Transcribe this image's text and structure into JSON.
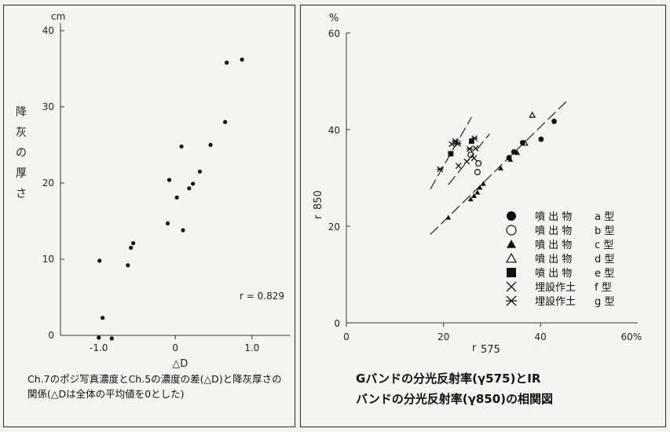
{
  "chart_data": [
    {
      "type": "scatter",
      "ylabel": "降灰の厚さ",
      "yunit": "cm",
      "xlabel": "△D",
      "xlim": [
        -1.5,
        1.5
      ],
      "ylim": [
        0,
        40
      ],
      "xticks": [
        "-1.0",
        "0",
        "1.0"
      ],
      "yticks": [
        "0",
        "10",
        "20",
        "30",
        "40"
      ],
      "annotation": "r = 0.829",
      "caption": "Ch.7のポジ写真濃度とCh.5の濃度の差(△D)と降灰厚さの関係(△Dは全体の平均値を0とした)",
      "points": [
        [
          -0.99,
          9.8
        ],
        [
          -0.95,
          2.3
        ],
        [
          -1.0,
          -0.3
        ],
        [
          -0.83,
          -0.4
        ],
        [
          -0.62,
          9.2
        ],
        [
          -0.58,
          11.5
        ],
        [
          -0.55,
          12.1
        ],
        [
          -0.1,
          14.7
        ],
        [
          -0.08,
          20.4
        ],
        [
          0.02,
          18.1
        ],
        [
          0.08,
          24.8
        ],
        [
          0.1,
          13.8
        ],
        [
          0.18,
          19.3
        ],
        [
          0.23,
          19.9
        ],
        [
          0.32,
          21.5
        ],
        [
          0.46,
          25.0
        ],
        [
          0.65,
          28.0
        ],
        [
          0.67,
          35.8
        ],
        [
          0.87,
          36.2
        ]
      ]
    },
    {
      "type": "scatter",
      "ylabel": "r",
      "ylabel_sub": "850",
      "xlabel": "r",
      "xlabel_sub": "575",
      "yunit": "%",
      "xunit": "60%",
      "xlim": [
        0,
        60
      ],
      "ylim": [
        0,
        60
      ],
      "xticks": [
        "0",
        "20",
        "40"
      ],
      "yticks": [
        "0",
        "20",
        "40",
        "60"
      ],
      "caption_line1": "Gバンドの分光反射率(γ575)とIR",
      "caption_line2": "バンドの分光反射率(γ850)の相関図",
      "legend": [
        {
          "marker": "filled-circle",
          "label": "噴 出 物",
          "type": "a 型"
        },
        {
          "marker": "open-circle",
          "label": "噴 出 物",
          "type": "b 型"
        },
        {
          "marker": "filled-triangle",
          "label": "噴 出 物",
          "type": "c 型"
        },
        {
          "marker": "open-triangle",
          "label": "噴 出 物",
          "type": "d 型"
        },
        {
          "marker": "filled-square",
          "label": "噴 出 物",
          "type": "e 型"
        },
        {
          "marker": "cross",
          "label": "埋設作土",
          "type": "f 型"
        },
        {
          "marker": "asterisk",
          "label": "埋設作土",
          "type": "g 型"
        }
      ],
      "series": [
        {
          "marker": "filled-circle",
          "points": [
            [
              33.5,
              34.2
            ],
            [
              34.5,
              35.4
            ],
            [
              36.3,
              37.3
            ],
            [
              40.1,
              38.0
            ],
            [
              42.8,
              41.7
            ]
          ]
        },
        {
          "marker": "open-circle",
          "points": [
            [
              25.6,
              34.8
            ],
            [
              27.2,
              33.0
            ],
            [
              27.0,
              31.2
            ]
          ]
        },
        {
          "marker": "filled-triangle",
          "points": [
            [
              21.0,
              21.8
            ],
            [
              25.6,
              25.6
            ],
            [
              26.3,
              26.3
            ],
            [
              27.0,
              27.0
            ],
            [
              27.5,
              28.0
            ],
            [
              28.2,
              28.8
            ],
            [
              31.8,
              32.0
            ],
            [
              33.8,
              33.8
            ],
            [
              35.2,
              35.2
            ]
          ]
        },
        {
          "marker": "open-triangle",
          "points": [
            [
              38.3,
              43.0
            ],
            [
              36.8,
              37.2
            ]
          ]
        },
        {
          "marker": "filled-square",
          "points": [
            [
              21.5,
              35.0
            ],
            [
              25.8,
              37.6
            ]
          ]
        },
        {
          "marker": "cross",
          "points": [
            [
              23.1,
              32.5
            ],
            [
              24.8,
              33.4
            ],
            [
              26.3,
              34.1
            ],
            [
              26.6,
              36.1
            ],
            [
              22.6,
              37.4
            ],
            [
              21.7,
              37.0
            ]
          ]
        },
        {
          "marker": "asterisk",
          "points": [
            [
              19.3,
              31.8
            ],
            [
              22.4,
              37.6
            ],
            [
              23.0,
              37.1
            ],
            [
              25.4,
              36.0
            ],
            [
              26.4,
              38.2
            ]
          ]
        }
      ],
      "trend_lines": [
        [
          [
            17.3,
            27.7
          ],
          [
            25.8,
            42.6
          ]
        ],
        [
          [
            21.0,
            28.6
          ],
          [
            29.5,
            39.1
          ]
        ],
        [
          [
            17.3,
            18.3
          ],
          [
            45.8,
            46.3
          ]
        ]
      ]
    }
  ]
}
